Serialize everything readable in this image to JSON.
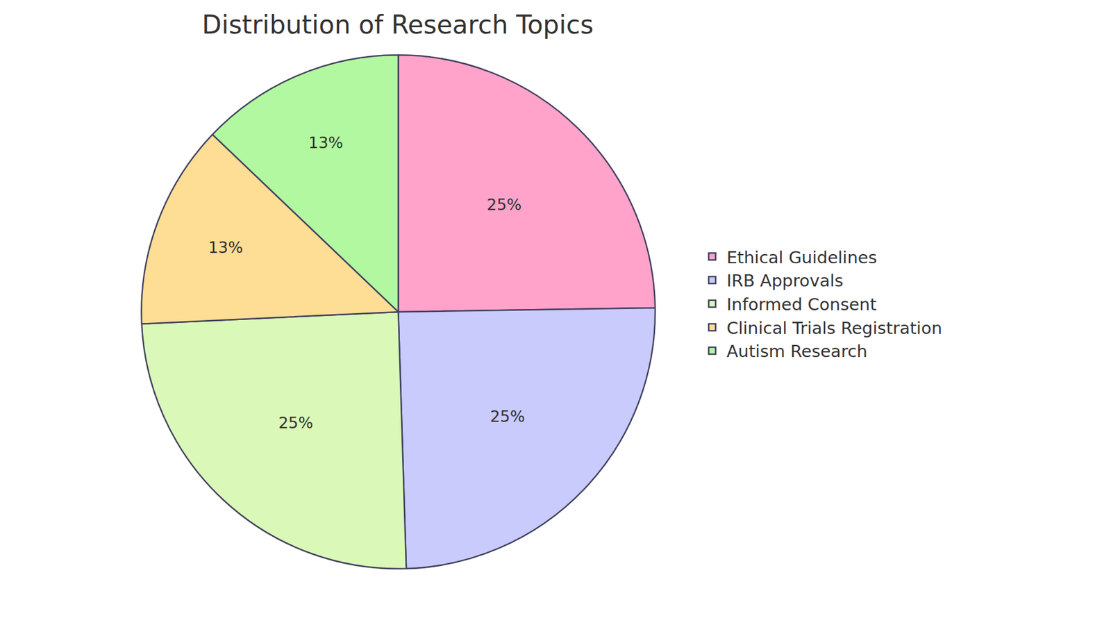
{
  "chart_data": {
    "type": "pie",
    "title": "Distribution of Research Topics",
    "categories": [
      "Ethical Guidelines",
      "IRB Approvals",
      "Informed Consent",
      "Clinical Trials Registration",
      "Autism Research"
    ],
    "values": [
      25,
      25,
      25,
      13,
      13
    ],
    "value_labels": [
      "25%",
      "25%",
      "25%",
      "13%",
      "13%"
    ],
    "colors": [
      "#ffa3cb",
      "#cacbfd",
      "#daf8b8",
      "#fedd94",
      "#b2f8a0"
    ],
    "data_labels": true,
    "legend": "right"
  }
}
